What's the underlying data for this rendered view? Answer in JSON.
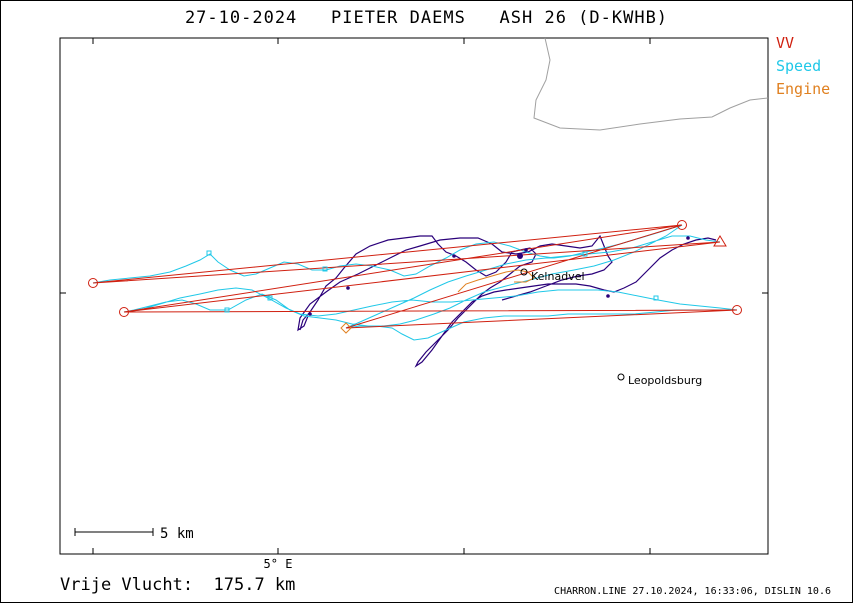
{
  "title": "27-10-2024   PIETER DAEMS   ASH 26 (D-KWHB)",
  "legend": [
    {
      "label": "VV",
      "color": "#d02010"
    },
    {
      "label": "Speed",
      "color": "#20c8e8"
    },
    {
      "label": "Engine",
      "color": "#e08020"
    }
  ],
  "map": {
    "places": [
      "Kelnadvel",
      "Leopoldsburg"
    ],
    "axis_label": "5° E",
    "scale_label": "5 km"
  },
  "footer": {
    "distance": "Vrije Vlucht:  175.7 km",
    "credit": "CHARRON.LINE 27.10.2024, 16:33:06, DISLIN 10.6"
  },
  "colors": {
    "task_line": "#d02010",
    "speed_track": "#20c8e8",
    "climb_track": "#2a007a",
    "engine_track": "#e08020",
    "coast": "#a0a0a0"
  }
}
